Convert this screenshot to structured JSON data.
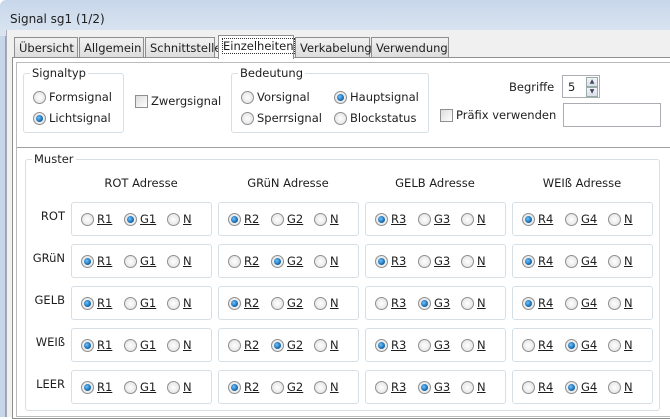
{
  "window": {
    "title": "Signal sg1 (1/2)"
  },
  "tabs": [
    {
      "label": "Übersicht"
    },
    {
      "label": "Allgemein"
    },
    {
      "label": "Schnittstelle"
    },
    {
      "label": "Einzelheiten",
      "active": true
    },
    {
      "label": "Verkabelung"
    },
    {
      "label": "Verwendung"
    }
  ],
  "signaltyp": {
    "label": "Signaltyp",
    "options": [
      "Formsignal",
      "Lichtsignal"
    ],
    "selected": "Lichtsignal"
  },
  "zwergsignal": {
    "label": "Zwergsignal",
    "checked": false
  },
  "bedeutung": {
    "label": "Bedeutung",
    "options": [
      "Vorsignal",
      "Hauptsignal",
      "Sperrsignal",
      "Blockstatus"
    ],
    "selected": "Hauptsignal"
  },
  "begriffe": {
    "label": "Begriffe",
    "value": "5"
  },
  "praefix": {
    "label": "Präfix verwenden",
    "checked": false,
    "value": ""
  },
  "muster": {
    "label": "Muster",
    "columns": [
      "ROT Adresse",
      "GRüN Adresse",
      "GELB Adresse",
      "WEIß Adresse"
    ],
    "column_options": [
      [
        "R1",
        "G1",
        "N"
      ],
      [
        "R2",
        "G2",
        "N"
      ],
      [
        "R3",
        "G3",
        "N"
      ],
      [
        "R4",
        "G4",
        "N"
      ]
    ],
    "rows": [
      {
        "label": "ROT",
        "selected": [
          "G1",
          "R2",
          "R3",
          "R4"
        ]
      },
      {
        "label": "GRüN",
        "selected": [
          "R1",
          "G2",
          "R3",
          "R4"
        ]
      },
      {
        "label": "GELB",
        "selected": [
          "R1",
          "R2",
          "G3",
          "R4"
        ]
      },
      {
        "label": "WEIß",
        "selected": [
          "R1",
          "G2",
          "R3",
          "G4"
        ]
      },
      {
        "label": "LEER",
        "selected": [
          "R1",
          "R2",
          "G3",
          "G4"
        ]
      }
    ]
  }
}
